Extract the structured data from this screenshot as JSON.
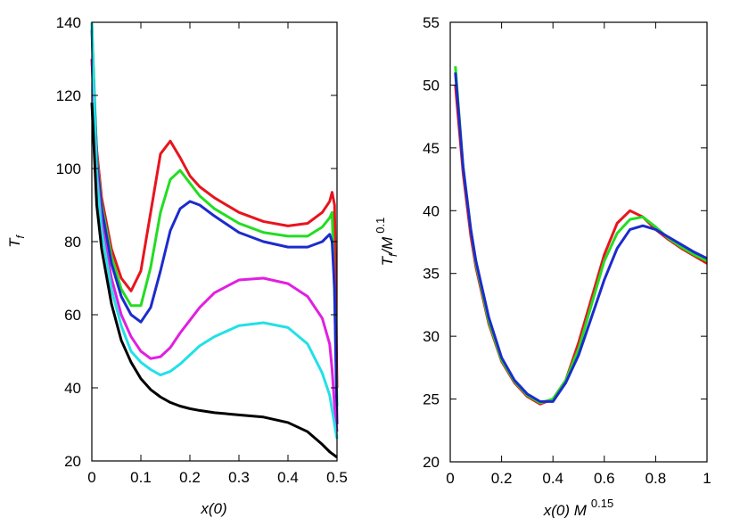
{
  "chart_data": [
    {
      "type": "line",
      "xlabel": "x(0)",
      "ylabel": [
        "T",
        "f"
      ],
      "x": [
        0,
        0.01,
        0.02,
        0.04,
        0.06,
        0.08,
        0.1,
        0.12,
        0.14,
        0.16,
        0.18,
        0.2,
        0.22,
        0.25,
        0.3,
        0.35,
        0.4,
        0.44,
        0.47,
        0.485,
        0.49,
        0.495,
        0.5
      ],
      "series": [
        {
          "color": "#e8141e",
          "values": [
            130,
            105,
            92,
            78,
            70,
            66.5,
            72,
            88,
            104,
            107.5,
            103,
            98,
            95,
            92,
            88,
            85.5,
            84.3,
            85,
            88,
            91,
            93.5,
            90,
            40
          ]
        },
        {
          "color": "#22dd22",
          "values": [
            140,
            103,
            90,
            76,
            67,
            62.5,
            62.5,
            73,
            88,
            97,
            99.5,
            96,
            92.5,
            89,
            85,
            82.5,
            81.5,
            81.5,
            84,
            86.5,
            88,
            65,
            35
          ]
        },
        {
          "color": "#1c2bcc",
          "values": [
            138,
            102,
            89,
            74,
            65,
            60,
            58,
            62,
            72,
            83,
            89,
            91,
            90,
            87,
            82.5,
            80,
            78.5,
            78.5,
            80,
            82,
            80,
            67,
            30
          ]
        },
        {
          "color": "#e020e0",
          "values": [
            130,
            100,
            85,
            70,
            60,
            54,
            50,
            48,
            48.5,
            51,
            55,
            58.5,
            62,
            66,
            69.5,
            70,
            68.5,
            65,
            59,
            52,
            45,
            35,
            28
          ]
        },
        {
          "color": "#22e0e8",
          "values": [
            140,
            98,
            83,
            67,
            57,
            50,
            47,
            45,
            43.5,
            44.5,
            46.5,
            49,
            51.5,
            54,
            57,
            57.8,
            56.5,
            52,
            44,
            38,
            34,
            30,
            26
          ]
        },
        {
          "color": "#000000",
          "values": [
            118,
            90,
            78,
            63,
            53,
            47,
            42.5,
            39.5,
            37.5,
            36,
            35,
            34.3,
            33.8,
            33.2,
            32.6,
            32,
            30.5,
            28,
            24.5,
            22.5,
            22,
            21.5,
            21
          ]
        }
      ],
      "xlim": [
        0,
        0.5
      ],
      "xticks": [
        0,
        0.1,
        0.2,
        0.3,
        0.4,
        0.5
      ],
      "ylim": [
        20,
        140
      ],
      "yticks": [
        20,
        40,
        60,
        80,
        100,
        120,
        140
      ]
    },
    {
      "type": "line",
      "xlabel": [
        "x(0) M",
        "0.15"
      ],
      "ylabel": [
        "T",
        "f",
        "/M",
        "0.1"
      ],
      "x": [
        0.02,
        0.05,
        0.08,
        0.1,
        0.15,
        0.2,
        0.25,
        0.3,
        0.35,
        0.4,
        0.45,
        0.5,
        0.55,
        0.6,
        0.65,
        0.7,
        0.75,
        0.8,
        0.85,
        0.9,
        0.95,
        1
      ],
      "series": [
        {
          "color": "#e8141e",
          "values": [
            50,
            43,
            38,
            35.5,
            31,
            28,
            26.3,
            25.2,
            24.6,
            25,
            26.5,
            29.5,
            33,
            36.5,
            39,
            40,
            39.5,
            38.5,
            37.7,
            37,
            36.4,
            35.8
          ]
        },
        {
          "color": "#22dd22",
          "values": [
            51.5,
            43.5,
            38.5,
            35.8,
            31.2,
            28.1,
            26.4,
            25.3,
            24.7,
            25,
            26.5,
            29,
            32.5,
            36,
            38.2,
            39.3,
            39.5,
            38.7,
            37.8,
            37.1,
            36.5,
            36
          ]
        },
        {
          "color": "#1c2bcc",
          "values": [
            51,
            43.5,
            38.5,
            36,
            31.5,
            28.3,
            26.5,
            25.4,
            24.8,
            24.8,
            26.3,
            28.5,
            31.5,
            34.5,
            37,
            38.5,
            38.8,
            38.5,
            37.9,
            37.3,
            36.7,
            36.2
          ]
        }
      ],
      "xlim": [
        0,
        1
      ],
      "xticks": [
        0,
        0.2,
        0.4,
        0.6,
        0.8,
        1
      ],
      "ylim": [
        20,
        55
      ],
      "yticks": [
        20,
        25,
        30,
        35,
        40,
        45,
        50,
        55
      ]
    }
  ]
}
